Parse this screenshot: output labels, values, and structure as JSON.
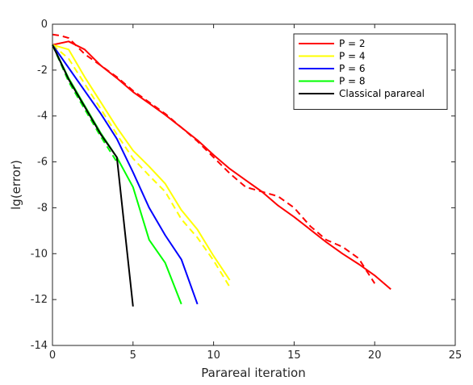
{
  "chart_data": {
    "type": "line",
    "title": "",
    "xlabel": "Parareal iteration",
    "ylabel": "lg(error)",
    "xlim": [
      0,
      25
    ],
    "ylim": [
      -14,
      0
    ],
    "xticks": [
      0,
      5,
      10,
      15,
      20,
      25
    ],
    "yticks": [
      0,
      -2,
      -4,
      -6,
      -8,
      -10,
      -12,
      -14
    ],
    "grid": false,
    "legend_position": "top-right",
    "series": [
      {
        "name": "P = 2",
        "color": "#ff0000",
        "style": "solid",
        "x": [
          0,
          1,
          2,
          3,
          4,
          5,
          6,
          7,
          8,
          9,
          10,
          11,
          12,
          13,
          14,
          15,
          16,
          17,
          18,
          19,
          20,
          21
        ],
        "y": [
          -0.9,
          -0.75,
          -1.1,
          -1.8,
          -2.35,
          -2.95,
          -3.45,
          -3.95,
          -4.5,
          -5.05,
          -5.7,
          -6.3,
          -6.8,
          -7.3,
          -7.9,
          -8.4,
          -8.95,
          -9.5,
          -10.0,
          -10.45,
          -10.95,
          -11.55
        ]
      },
      {
        "name": "",
        "color": "#ff0000",
        "style": "dashed",
        "x": [
          0,
          0.5,
          1,
          2,
          3,
          4,
          5,
          6,
          7,
          8,
          9,
          10,
          11,
          12,
          13,
          14,
          15,
          16,
          17,
          18,
          19,
          20
        ],
        "y": [
          -0.45,
          -0.5,
          -0.6,
          -1.3,
          -1.8,
          -2.3,
          -2.9,
          -3.4,
          -3.9,
          -4.5,
          -5.1,
          -5.8,
          -6.5,
          -7.1,
          -7.3,
          -7.5,
          -8.0,
          -8.8,
          -9.4,
          -9.7,
          -10.2,
          -11.3
        ]
      },
      {
        "name": "P = 4",
        "color": "#ffff00",
        "style": "solid",
        "x": [
          0,
          1,
          2,
          3,
          4,
          5,
          6,
          7,
          8,
          9,
          10,
          11
        ],
        "y": [
          -0.9,
          -1.1,
          -2.3,
          -3.4,
          -4.5,
          -5.5,
          -6.2,
          -6.95,
          -8.1,
          -8.95,
          -10.1,
          -11.15
        ]
      },
      {
        "name": "",
        "color": "#ffff00",
        "style": "dashed",
        "x": [
          0,
          1,
          2,
          3,
          4,
          5,
          6,
          7,
          8,
          9,
          10,
          11
        ],
        "y": [
          -0.9,
          -1.5,
          -2.6,
          -3.7,
          -4.8,
          -5.85,
          -6.6,
          -7.3,
          -8.5,
          -9.3,
          -10.3,
          -11.45
        ]
      },
      {
        "name": "P = 6",
        "color": "#0000ff",
        "style": "solid",
        "x": [
          0,
          1,
          2,
          3,
          4,
          5,
          6,
          7,
          8,
          9
        ],
        "y": [
          -0.9,
          -1.9,
          -2.9,
          -3.9,
          -5.0,
          -6.45,
          -8.0,
          -9.2,
          -10.25,
          -12.2
        ]
      },
      {
        "name": "P = 8",
        "color": "#00ff00",
        "style": "solid",
        "x": [
          0,
          1,
          2,
          3,
          4,
          5,
          6,
          7,
          8
        ],
        "y": [
          -0.9,
          -2.35,
          -3.55,
          -4.75,
          -5.8,
          -7.1,
          -9.4,
          -10.4,
          -12.2
        ]
      },
      {
        "name": "",
        "color": "#00ff00",
        "style": "dashed",
        "x": [
          0,
          1,
          2,
          3,
          4
        ],
        "y": [
          -0.9,
          -2.5,
          -3.7,
          -4.9,
          -6.0
        ]
      },
      {
        "name": "Classical parareal",
        "color": "#000000",
        "style": "solid",
        "x": [
          0,
          1,
          2,
          3,
          4,
          5
        ],
        "y": [
          -0.9,
          -2.4,
          -3.6,
          -4.8,
          -5.8,
          -12.3
        ]
      }
    ]
  }
}
